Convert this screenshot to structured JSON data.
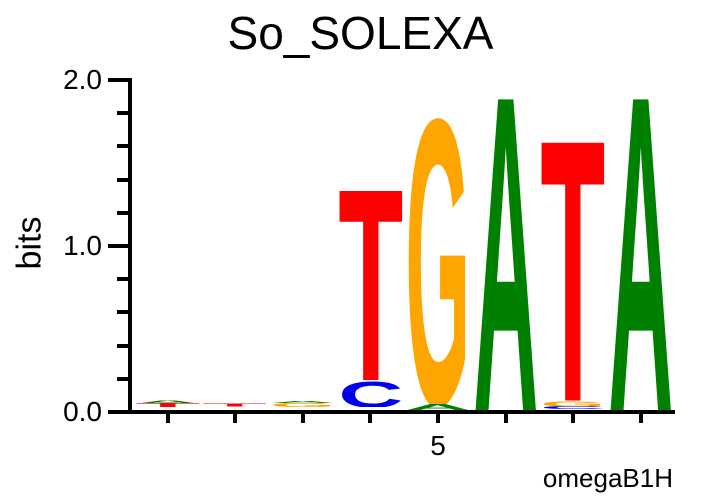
{
  "title": "So_SOLEXA",
  "footer_label": "omegaB1H",
  "colors": {
    "A": "#008000",
    "C": "#0000EE",
    "G": "#FFA500",
    "T": "#FF0000",
    "axis": "#000000",
    "background": "#FFFFFF"
  },
  "y_axis": {
    "label": "bits",
    "min": 0.0,
    "max": 2.0,
    "minor_tick_step": 0.2,
    "major_ticks": [
      {
        "value": 0.0,
        "label": "0.0"
      },
      {
        "value": 1.0,
        "label": "1.0"
      },
      {
        "value": 2.0,
        "label": "2.0"
      }
    ]
  },
  "x_axis": {
    "num_positions": 8,
    "labeled_ticks": [
      {
        "position": 5,
        "label": "5"
      }
    ]
  },
  "chart_data": {
    "type": "bar",
    "subtype": "sequence-logo",
    "title": "So_SOLEXA",
    "xlabel": "",
    "ylabel": "bits",
    "ylim": [
      0.0,
      2.0
    ],
    "categories": [
      1,
      2,
      3,
      4,
      5,
      6,
      7,
      8
    ],
    "annotation": "omegaB1H",
    "stacks": [
      {
        "position": 1,
        "base_offset_bits": 0.015,
        "letters": [
          {
            "letter": "T",
            "bits": 0.025
          },
          {
            "letter": "A",
            "bits": 0.022
          }
        ]
      },
      {
        "position": 2,
        "base_offset_bits": 0.018,
        "letters": [
          {
            "letter": "T",
            "bits": 0.022
          }
        ]
      },
      {
        "position": 3,
        "base_offset_bits": 0.015,
        "letters": [
          {
            "letter": "G",
            "bits": 0.025
          },
          {
            "letter": "A",
            "bits": 0.012
          }
        ]
      },
      {
        "position": 4,
        "base_offset_bits": 0.015,
        "letters": [
          {
            "letter": "C",
            "bits": 0.165
          },
          {
            "letter": "T",
            "bits": 1.22
          }
        ]
      },
      {
        "position": 5,
        "base_offset_bits": 0.0,
        "letters": [
          {
            "letter": "A",
            "bits": 0.035
          },
          {
            "letter": "G",
            "bits": 1.815
          }
        ]
      },
      {
        "position": 6,
        "base_offset_bits": 0.0,
        "letters": [
          {
            "letter": "A",
            "bits": 2.0
          }
        ]
      },
      {
        "position": 7,
        "base_offset_bits": 0.005,
        "letters": [
          {
            "letter": "C",
            "bits": 0.018
          },
          {
            "letter": "G",
            "bits": 0.033
          },
          {
            "letter": "T",
            "bits": 1.66
          }
        ]
      },
      {
        "position": 8,
        "base_offset_bits": 0.0,
        "letters": [
          {
            "letter": "A",
            "bits": 2.0
          }
        ]
      }
    ]
  }
}
